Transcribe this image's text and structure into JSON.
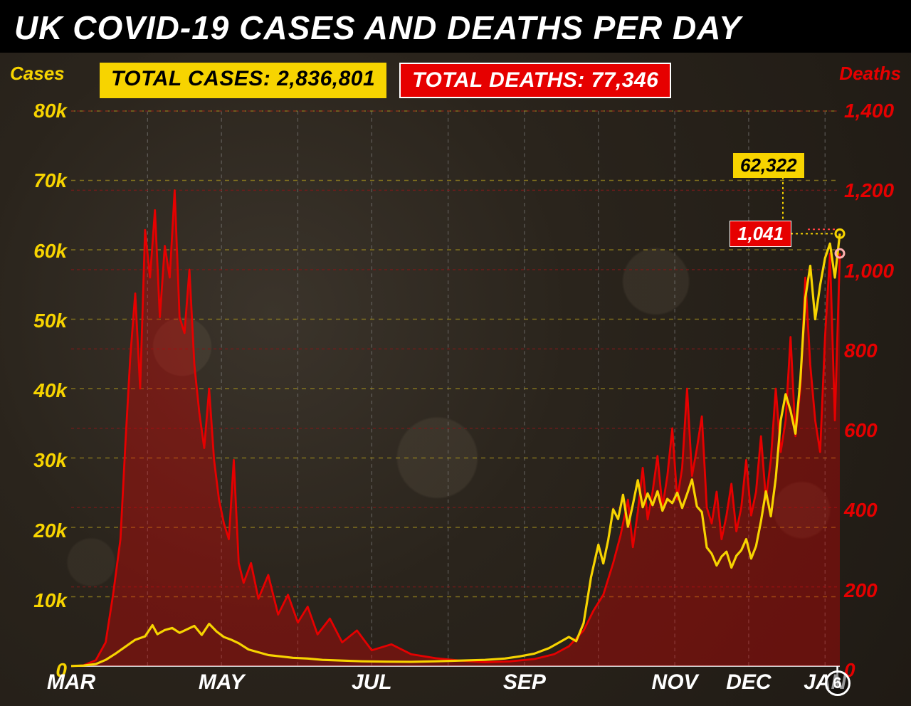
{
  "title": "UK COVID-19 CASES AND DEATHS PER DAY",
  "badges": {
    "cases_label": "TOTAL CASES: 2,836,801",
    "deaths_label": "TOTAL DEATHS: 77,346"
  },
  "axis_titles": {
    "left": "Cases",
    "right": "Deaths"
  },
  "callouts": {
    "cases_value": "62,322",
    "deaths_value": "1,041"
  },
  "date_marker": "6",
  "chart": {
    "type": "dual-axis-line",
    "background_gradient": [
      "#3b342b",
      "#2a241c",
      "#1f1a14"
    ],
    "title_fontsize": 46,
    "badge_fontsize": 30,
    "tick_fontsize": 28,
    "cases_color": "#f7d400",
    "deaths_color": "#e60000",
    "deaths_fill_opacity": 0.35,
    "grid_cases_color": "#a38f1f",
    "grid_deaths_color": "#7a1a1a",
    "month_grid_color": "#888888",
    "cases_line_width": 3.2,
    "deaths_line_width": 2.8,
    "x_domain_days": [
      0,
      312
    ],
    "y_left": {
      "min": 0,
      "max": 80000,
      "ticks": [
        0,
        10000,
        20000,
        30000,
        40000,
        50000,
        60000,
        70000,
        80000
      ],
      "labels": [
        "0",
        "10k",
        "20k",
        "30k",
        "40k",
        "50k",
        "60k",
        "70k",
        "80k"
      ]
    },
    "y_right": {
      "min": 0,
      "max": 1400,
      "ticks": [
        0,
        200,
        400,
        600,
        800,
        1000,
        1200,
        1400
      ],
      "labels": [
        "0",
        "200",
        "400",
        "600",
        "800",
        "1,000",
        "1,200",
        "1,400"
      ]
    },
    "x_months": [
      {
        "label": "MAR",
        "day": 0
      },
      {
        "label": "MAY",
        "day": 61
      },
      {
        "label": "JUL",
        "day": 122
      },
      {
        "label": "SEP",
        "day": 184
      },
      {
        "label": "NOV",
        "day": 245
      },
      {
        "label": "DEC",
        "day": 275
      },
      {
        "label": "JAN",
        "day": 306
      }
    ],
    "x_month_gridlines": [
      31,
      61,
      92,
      122,
      153,
      184,
      214,
      245,
      275,
      306
    ],
    "date_marker_day": 311,
    "cases_series": [
      [
        0,
        20
      ],
      [
        5,
        80
      ],
      [
        10,
        300
      ],
      [
        14,
        900
      ],
      [
        18,
        1800
      ],
      [
        22,
        2800
      ],
      [
        26,
        3800
      ],
      [
        30,
        4300
      ],
      [
        33,
        5900
      ],
      [
        35,
        4600
      ],
      [
        38,
        5200
      ],
      [
        41,
        5500
      ],
      [
        44,
        4800
      ],
      [
        47,
        5300
      ],
      [
        50,
        5800
      ],
      [
        53,
        4500
      ],
      [
        56,
        6100
      ],
      [
        59,
        5000
      ],
      [
        62,
        4200
      ],
      [
        65,
        3800
      ],
      [
        68,
        3300
      ],
      [
        72,
        2400
      ],
      [
        76,
        2000
      ],
      [
        80,
        1600
      ],
      [
        85,
        1400
      ],
      [
        90,
        1200
      ],
      [
        96,
        1100
      ],
      [
        102,
        900
      ],
      [
        110,
        800
      ],
      [
        118,
        700
      ],
      [
        128,
        650
      ],
      [
        138,
        620
      ],
      [
        148,
        700
      ],
      [
        158,
        800
      ],
      [
        168,
        900
      ],
      [
        176,
        1100
      ],
      [
        182,
        1400
      ],
      [
        188,
        1800
      ],
      [
        194,
        2600
      ],
      [
        198,
        3400
      ],
      [
        202,
        4200
      ],
      [
        205,
        3600
      ],
      [
        208,
        6200
      ],
      [
        211,
        12800
      ],
      [
        214,
        17500
      ],
      [
        216,
        14800
      ],
      [
        218,
        18200
      ],
      [
        220,
        22600
      ],
      [
        222,
        21200
      ],
      [
        224,
        24700
      ],
      [
        226,
        20100
      ],
      [
        228,
        23300
      ],
      [
        230,
        26800
      ],
      [
        232,
        22900
      ],
      [
        234,
        24900
      ],
      [
        236,
        23200
      ],
      [
        238,
        25200
      ],
      [
        240,
        22400
      ],
      [
        242,
        24100
      ],
      [
        244,
        23500
      ],
      [
        246,
        25000
      ],
      [
        248,
        22800
      ],
      [
        250,
        24800
      ],
      [
        252,
        26900
      ],
      [
        254,
        23000
      ],
      [
        256,
        22200
      ],
      [
        258,
        17100
      ],
      [
        260,
        16200
      ],
      [
        262,
        14500
      ],
      [
        264,
        15800
      ],
      [
        266,
        16500
      ],
      [
        268,
        14200
      ],
      [
        270,
        15900
      ],
      [
        272,
        16700
      ],
      [
        274,
        18300
      ],
      [
        276,
        15500
      ],
      [
        278,
        17300
      ],
      [
        280,
        20900
      ],
      [
        282,
        25200
      ],
      [
        284,
        21600
      ],
      [
        286,
        27100
      ],
      [
        288,
        35400
      ],
      [
        290,
        39200
      ],
      [
        292,
        36800
      ],
      [
        294,
        33500
      ],
      [
        296,
        41400
      ],
      [
        298,
        53100
      ],
      [
        300,
        57700
      ],
      [
        302,
        50000
      ],
      [
        304,
        54900
      ],
      [
        306,
        58800
      ],
      [
        308,
        60900
      ],
      [
        310,
        56000
      ],
      [
        312,
        62322
      ]
    ],
    "deaths_series": [
      [
        0,
        0
      ],
      [
        5,
        2
      ],
      [
        10,
        15
      ],
      [
        14,
        60
      ],
      [
        17,
        180
      ],
      [
        20,
        320
      ],
      [
        22,
        560
      ],
      [
        24,
        780
      ],
      [
        26,
        940
      ],
      [
        28,
        700
      ],
      [
        30,
        1100
      ],
      [
        32,
        980
      ],
      [
        34,
        1150
      ],
      [
        36,
        880
      ],
      [
        38,
        1060
      ],
      [
        40,
        980
      ],
      [
        42,
        1200
      ],
      [
        44,
        880
      ],
      [
        46,
        840
      ],
      [
        48,
        1000
      ],
      [
        50,
        760
      ],
      [
        52,
        640
      ],
      [
        54,
        550
      ],
      [
        56,
        700
      ],
      [
        58,
        520
      ],
      [
        60,
        420
      ],
      [
        62,
        360
      ],
      [
        64,
        320
      ],
      [
        66,
        520
      ],
      [
        68,
        260
      ],
      [
        70,
        210
      ],
      [
        73,
        260
      ],
      [
        76,
        170
      ],
      [
        80,
        230
      ],
      [
        84,
        130
      ],
      [
        88,
        180
      ],
      [
        92,
        110
      ],
      [
        96,
        150
      ],
      [
        100,
        80
      ],
      [
        105,
        120
      ],
      [
        110,
        60
      ],
      [
        116,
        90
      ],
      [
        122,
        40
      ],
      [
        130,
        55
      ],
      [
        138,
        30
      ],
      [
        148,
        20
      ],
      [
        158,
        14
      ],
      [
        168,
        10
      ],
      [
        178,
        12
      ],
      [
        188,
        18
      ],
      [
        196,
        30
      ],
      [
        202,
        50
      ],
      [
        208,
        90
      ],
      [
        212,
        140
      ],
      [
        216,
        180
      ],
      [
        220,
        260
      ],
      [
        223,
        330
      ],
      [
        226,
        420
      ],
      [
        228,
        300
      ],
      [
        230,
        390
      ],
      [
        232,
        500
      ],
      [
        234,
        370
      ],
      [
        236,
        440
      ],
      [
        238,
        530
      ],
      [
        240,
        400
      ],
      [
        242,
        480
      ],
      [
        244,
        600
      ],
      [
        246,
        420
      ],
      [
        248,
        500
      ],
      [
        250,
        700
      ],
      [
        252,
        480
      ],
      [
        254,
        550
      ],
      [
        256,
        630
      ],
      [
        258,
        400
      ],
      [
        260,
        360
      ],
      [
        262,
        440
      ],
      [
        264,
        320
      ],
      [
        266,
        380
      ],
      [
        268,
        460
      ],
      [
        270,
        340
      ],
      [
        272,
        400
      ],
      [
        274,
        520
      ],
      [
        276,
        380
      ],
      [
        278,
        440
      ],
      [
        280,
        580
      ],
      [
        282,
        420
      ],
      [
        284,
        520
      ],
      [
        286,
        700
      ],
      [
        288,
        540
      ],
      [
        290,
        620
      ],
      [
        292,
        830
      ],
      [
        294,
        580
      ],
      [
        296,
        700
      ],
      [
        298,
        980
      ],
      [
        300,
        760
      ],
      [
        302,
        620
      ],
      [
        304,
        540
      ],
      [
        306,
        830
      ],
      [
        308,
        1040
      ],
      [
        310,
        620
      ],
      [
        312,
        1041
      ]
    ]
  }
}
